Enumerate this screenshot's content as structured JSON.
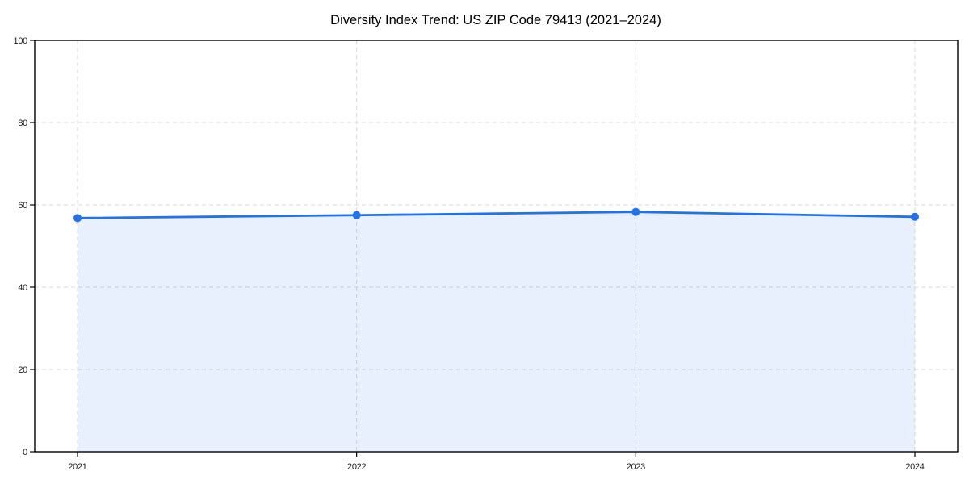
{
  "chart_data": {
    "type": "area",
    "title": "Diversity Index Trend: US ZIP Code 79413 (2021–2024)",
    "categories": [
      "2021",
      "2022",
      "2023",
      "2024"
    ],
    "series": [
      {
        "name": "Diversity Index",
        "values": [
          56.8,
          57.5,
          58.3,
          57.1
        ]
      }
    ],
    "xlabel": "",
    "ylabel": "",
    "ylim": [
      0,
      100
    ],
    "yticks": [
      0,
      20,
      40,
      60,
      80,
      100
    ],
    "grid": "dashed both horizontal and vertical",
    "legend": "none",
    "marker": "circle",
    "colors": {
      "line": "#2372e8",
      "marker": "#2372e8",
      "area_fill": "#2574e8",
      "area_opacity": "0.11",
      "gridline": "#d9d9d9",
      "spine": "#000000",
      "background": "#ffffff",
      "tick_text": "#1a1a1a",
      "title_text": "#000000"
    }
  }
}
